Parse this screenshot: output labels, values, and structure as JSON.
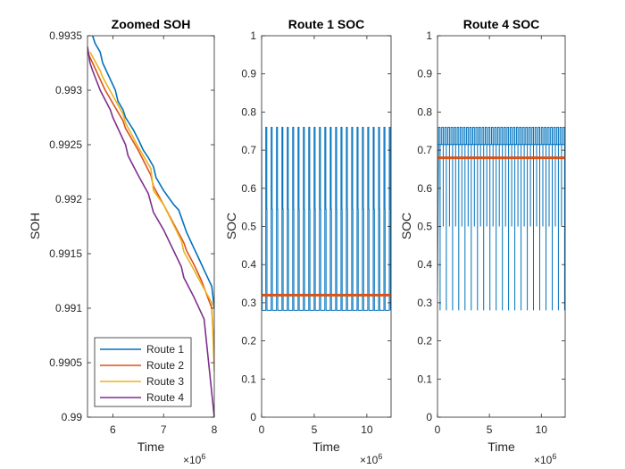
{
  "chart_data": [
    {
      "type": "line",
      "title": "Zoomed SOH",
      "xlabel": "Time",
      "ylabel": "SOH",
      "x_exponent_label": "×10",
      "x_exponent": "6",
      "xlim": [
        5.5,
        8
      ],
      "ylim": [
        0.99,
        0.9935
      ],
      "xticks": [
        6,
        7,
        8
      ],
      "xtick_labels": [
        "6",
        "7",
        "8"
      ],
      "yticks": [
        0.99,
        0.9905,
        0.991,
        0.9915,
        0.992,
        0.9925,
        0.993,
        0.9935
      ],
      "ytick_labels": [
        "0.99",
        "0.9905",
        "0.991",
        "0.9915",
        "0.992",
        "0.9925",
        "0.993",
        "0.9935"
      ],
      "grid": false,
      "legend_position": "bottom-left",
      "series": [
        {
          "name": "Route 1",
          "color": "#0072BD",
          "x": [
            5.55,
            5.6,
            5.65,
            5.75,
            5.8,
            5.85,
            5.9,
            6.05,
            6.1,
            6.2,
            6.25,
            6.4,
            6.5,
            6.6,
            6.7,
            6.8,
            6.85,
            7.0,
            7.2,
            7.3,
            7.45,
            7.55,
            7.7,
            7.85,
            7.95,
            8.0
          ],
          "y": [
            0.99355,
            0.9935,
            0.99343,
            0.99335,
            0.99325,
            0.9932,
            0.99315,
            0.993,
            0.9929,
            0.99282,
            0.99275,
            0.99264,
            0.99255,
            0.99245,
            0.99238,
            0.9923,
            0.9922,
            0.99208,
            0.99195,
            0.9919,
            0.9917,
            0.9916,
            0.99145,
            0.9913,
            0.9912,
            0.991
          ]
        },
        {
          "name": "Route 2",
          "color": "#D95319",
          "x": [
            5.5,
            5.6,
            5.8,
            5.85,
            6.0,
            6.2,
            6.25,
            6.5,
            6.75,
            6.8,
            7.0,
            7.4,
            7.45,
            7.6,
            7.75,
            7.95,
            8.0
          ],
          "y": [
            0.99335,
            0.99325,
            0.99305,
            0.993,
            0.99288,
            0.99272,
            0.99265,
            0.99245,
            0.99222,
            0.99212,
            0.99195,
            0.9916,
            0.99153,
            0.9914,
            0.99125,
            0.991,
            0.99058
          ]
        },
        {
          "name": "Route 3",
          "color": "#EDB120",
          "x": [
            5.55,
            5.75,
            5.8,
            6.0,
            6.2,
            6.25,
            6.5,
            6.75,
            6.8,
            7.0,
            7.35,
            7.4,
            7.6,
            7.75,
            7.95,
            8.0
          ],
          "y": [
            0.99335,
            0.99318,
            0.99312,
            0.99295,
            0.99278,
            0.9927,
            0.99248,
            0.99228,
            0.99208,
            0.99195,
            0.99162,
            0.99152,
            0.99135,
            0.99122,
            0.99105,
            0.99042
          ]
        },
        {
          "name": "Route 4",
          "color": "#7E2F8E",
          "x": [
            5.5,
            5.55,
            5.6,
            5.75,
            5.95,
            6.0,
            6.25,
            6.3,
            6.5,
            6.7,
            6.8,
            7.0,
            7.35,
            7.4,
            7.6,
            7.8,
            8.0
          ],
          "y": [
            0.9934,
            0.99325,
            0.99318,
            0.993,
            0.99282,
            0.99275,
            0.9925,
            0.9924,
            0.99222,
            0.99205,
            0.99188,
            0.99172,
            0.99138,
            0.99128,
            0.9911,
            0.9909,
            0.99
          ]
        }
      ]
    },
    {
      "type": "line",
      "title": "Route 1 SOC",
      "xlabel": "Time",
      "ylabel": "SOC",
      "x_exponent_label": "×10",
      "x_exponent": "6",
      "xlim": [
        0,
        12.3
      ],
      "ylim": [
        0,
        1
      ],
      "xticks": [
        0,
        5,
        10
      ],
      "xtick_labels": [
        "0",
        "5",
        "10"
      ],
      "yticks": [
        0,
        0.1,
        0.2,
        0.3,
        0.4,
        0.5,
        0.6,
        0.7,
        0.8,
        0.9,
        1
      ],
      "ytick_labels": [
        "0",
        "0.1",
        "0.2",
        "0.3",
        "0.4",
        "0.5",
        "0.6",
        "0.7",
        "0.8",
        "0.9",
        "1"
      ],
      "grid": false,
      "oscillation": {
        "color": "#0072BD",
        "first_spike_x": 0.4,
        "spike_period": 0.51,
        "peak": 0.76,
        "mid": 0.545,
        "trough": 0.28,
        "initial_value": 0.8
      },
      "mean_line": {
        "color": "#D95319",
        "value": 0.32
      }
    },
    {
      "type": "line",
      "title": "Route 4 SOC",
      "xlabel": "Time",
      "ylabel": "SOC",
      "x_exponent_label": "×10",
      "x_exponent": "6",
      "xlim": [
        0,
        12.3
      ],
      "ylim": [
        0,
        1
      ],
      "xticks": [
        0,
        5,
        10
      ],
      "xtick_labels": [
        "0",
        "5",
        "10"
      ],
      "yticks": [
        0,
        0.1,
        0.2,
        0.3,
        0.4,
        0.5,
        0.6,
        0.7,
        0.8,
        0.9,
        1
      ],
      "ytick_labels": [
        "0",
        "0.1",
        "0.2",
        "0.3",
        "0.4",
        "0.5",
        "0.6",
        "0.7",
        "0.8",
        "0.9",
        "1"
      ],
      "grid": false,
      "oscillation": {
        "color": "#0072BD",
        "first_spike_x": 0.1,
        "spike_period": 0.3,
        "peak": 0.76,
        "mid": 0.715,
        "upper_band": 0.715,
        "lower_band": 0.5,
        "trough": 0.28
      },
      "mean_line": {
        "color": "#D95319",
        "value": 0.68
      }
    }
  ]
}
